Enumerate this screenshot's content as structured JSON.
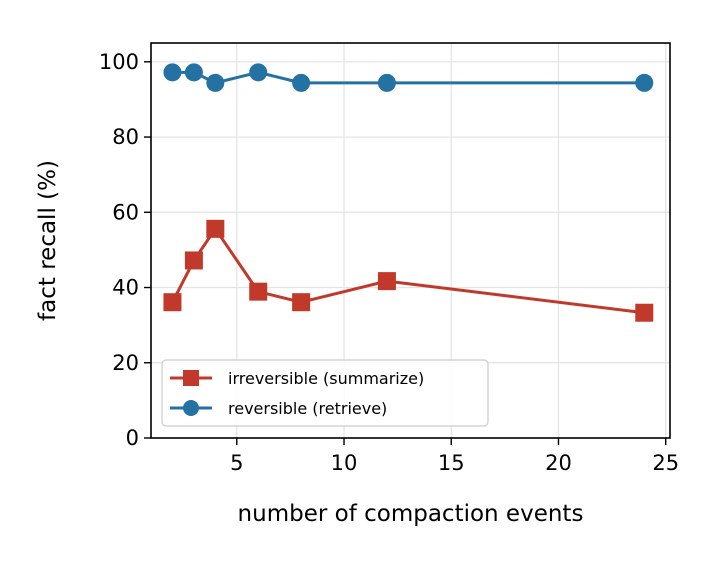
{
  "chart_data": {
    "type": "line",
    "title": "",
    "xlabel": "number of compaction events",
    "ylabel": "fact recall (%)",
    "xlim": [
      1,
      25.2
    ],
    "ylim": [
      0,
      105
    ],
    "xticks": [
      5,
      10,
      15,
      20,
      25
    ],
    "yticks": [
      0,
      20,
      40,
      60,
      80,
      100
    ],
    "grid": true,
    "legend_position": "lower-left",
    "series": [
      {
        "name": "irreversible (summarize)",
        "color": "#c0392b",
        "marker": "square",
        "x": [
          2,
          3,
          4,
          6,
          8,
          12,
          24
        ],
        "y": [
          36.1,
          47.2,
          55.6,
          38.9,
          36.1,
          41.7,
          33.3
        ]
      },
      {
        "name": "reversible (retrieve)",
        "color": "#2471a3",
        "marker": "circle",
        "x": [
          2,
          3,
          4,
          6,
          8,
          12,
          24
        ],
        "y": [
          97.2,
          97.2,
          94.4,
          97.2,
          94.4,
          94.4,
          94.4
        ]
      }
    ]
  }
}
